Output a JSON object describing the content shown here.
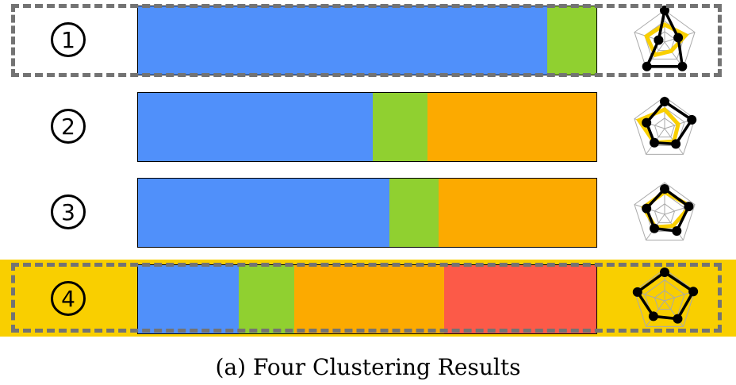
{
  "colors": {
    "blue": "#5090fa",
    "green": "#90d030",
    "orange": "#fcaa00",
    "red": "#fc5a48",
    "highlight": "#f9cf00",
    "dash": "#737373"
  },
  "caption": "(a)  Four Clustering Results",
  "results": [
    {
      "label": "1",
      "boxed": true,
      "highlighted": false,
      "segments": [
        {
          "color": "blue",
          "fraction": 0.893
        },
        {
          "color": "green",
          "fraction": 0.107
        }
      ]
    },
    {
      "label": "2",
      "boxed": false,
      "highlighted": false,
      "segments": [
        {
          "color": "blue",
          "fraction": 0.512
        },
        {
          "color": "green",
          "fraction": 0.119
        },
        {
          "color": "orange",
          "fraction": 0.369
        }
      ]
    },
    {
      "label": "3",
      "boxed": false,
      "highlighted": false,
      "segments": [
        {
          "color": "blue",
          "fraction": 0.548
        },
        {
          "color": "green",
          "fraction": 0.108
        },
        {
          "color": "orange",
          "fraction": 0.344
        }
      ]
    },
    {
      "label": "4",
      "boxed": true,
      "highlighted": true,
      "segments": [
        {
          "color": "blue",
          "fraction": 0.219
        },
        {
          "color": "green",
          "fraction": 0.121
        },
        {
          "color": "orange",
          "fraction": 0.327
        },
        {
          "color": "red",
          "fraction": 0.333
        }
      ]
    }
  ]
}
